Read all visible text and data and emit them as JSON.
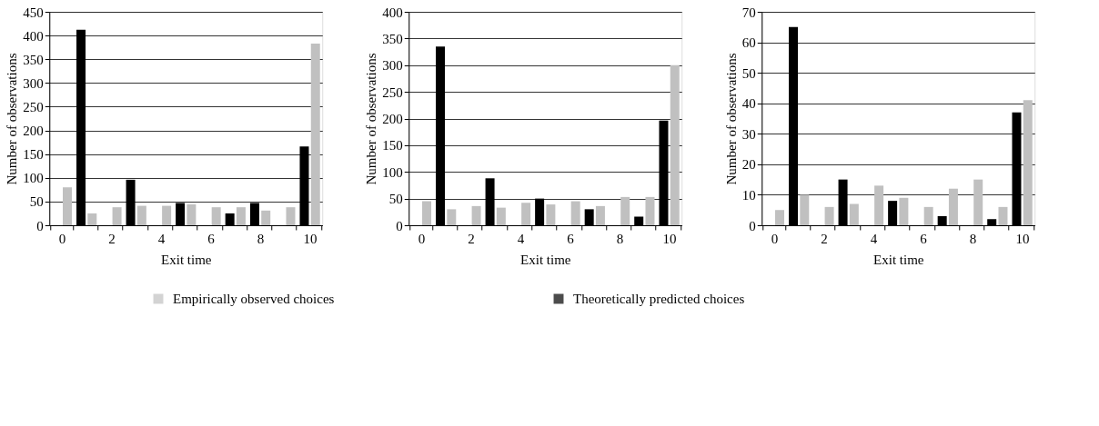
{
  "chart_data": [
    {
      "type": "bar",
      "xlabel": "Exit time",
      "ylabel": "Number of observations",
      "categories": [
        "0",
        null,
        "2",
        null,
        "4",
        null,
        "6",
        null,
        "8",
        null,
        "10"
      ],
      "ylim": [
        0,
        450
      ],
      "yticks": [
        0,
        50,
        100,
        150,
        200,
        250,
        300,
        350,
        400,
        450
      ],
      "grid": "y",
      "legend": "bottom",
      "series": [
        {
          "name": "Empirically observed choices",
          "color": "#c0c0c0",
          "values": [
            80,
            25,
            38,
            41,
            41,
            44,
            38,
            38,
            31,
            38,
            383
          ]
        },
        {
          "name": "Theoretically predicted choices",
          "color": "#000000",
          "values": [
            0,
            412,
            0,
            96,
            0,
            47,
            0,
            25,
            47,
            0,
            166
          ]
        }
      ]
    },
    {
      "type": "bar",
      "xlabel": "Exit time",
      "ylabel": "Number of observations",
      "categories": [
        "0",
        null,
        "2",
        null,
        "4",
        null,
        "6",
        null,
        "8",
        null,
        "10"
      ],
      "ylim": [
        0,
        400
      ],
      "yticks": [
        0,
        50,
        100,
        150,
        200,
        250,
        300,
        350,
        400
      ],
      "grid": "y",
      "legend": "bottom",
      "series": [
        {
          "name": "Empirically observed choices",
          "color": "#c0c0c0",
          "values": [
            45,
            30,
            36,
            33,
            42,
            39,
            45,
            36,
            53,
            53,
            300
          ]
        },
        {
          "name": "Theoretically predicted choices",
          "color": "#000000",
          "values": [
            0,
            335,
            0,
            88,
            0,
            50,
            0,
            30,
            0,
            16,
            196
          ]
        }
      ]
    },
    {
      "type": "bar",
      "xlabel": "Exit time",
      "ylabel": "Number of observations",
      "categories": [
        "0",
        null,
        "2",
        null,
        "4",
        null,
        "6",
        null,
        "8",
        null,
        "10"
      ],
      "ylim": [
        0,
        70
      ],
      "yticks": [
        0,
        10,
        20,
        30,
        40,
        50,
        60,
        70
      ],
      "grid": "y",
      "legend": "bottom",
      "series": [
        {
          "name": "Empirically observed choices",
          "color": "#c0c0c0",
          "values": [
            5,
            10,
            6,
            7,
            13,
            9,
            6,
            12,
            15,
            6,
            41
          ]
        },
        {
          "name": "Theoretically predicted choices",
          "color": "#000000",
          "values": [
            0,
            65,
            0,
            15,
            0,
            8,
            0,
            3,
            0,
            2,
            37
          ]
        }
      ]
    }
  ]
}
